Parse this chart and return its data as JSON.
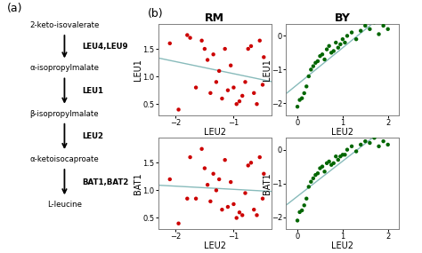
{
  "panel_a": {
    "steps": [
      "2-keto-isovalerate",
      "α-isopropylmalate",
      "β-isopropylmalate",
      "α-ketoisocaproate",
      "L-leucine"
    ],
    "enzymes": [
      "LEU4,LEU9",
      "LEU1",
      "LEU2",
      "BAT1,BAT2"
    ]
  },
  "panel_b": {
    "rm_leu1_leu2_x": [
      -2.1,
      -1.95,
      -1.8,
      -1.75,
      -1.65,
      -1.55,
      -1.5,
      -1.45,
      -1.4,
      -1.35,
      -1.3,
      -1.25,
      -1.2,
      -1.15,
      -1.1,
      -1.05,
      -1.0,
      -0.95,
      -0.9,
      -0.85,
      -0.8,
      -0.75,
      -0.7,
      -0.65,
      -0.6,
      -0.55,
      -0.5,
      -0.48
    ],
    "rm_leu1_leu2_y": [
      1.6,
      0.4,
      1.75,
      1.7,
      0.8,
      1.65,
      1.5,
      1.3,
      0.7,
      1.4,
      0.9,
      1.1,
      0.6,
      1.5,
      0.75,
      1.2,
      0.8,
      0.5,
      0.55,
      0.65,
      0.9,
      1.5,
      1.55,
      0.7,
      0.5,
      1.65,
      0.85,
      1.35
    ],
    "by_leu1_leu2_x": [
      0.0,
      0.05,
      0.1,
      0.15,
      0.2,
      0.25,
      0.3,
      0.35,
      0.4,
      0.45,
      0.5,
      0.55,
      0.6,
      0.65,
      0.7,
      0.75,
      0.8,
      0.85,
      0.9,
      0.95,
      1.0,
      1.05,
      1.1,
      1.2,
      1.3,
      1.4,
      1.5,
      1.6,
      1.7,
      1.8,
      1.9,
      2.0
    ],
    "by_leu1_leu2_y": [
      -2.1,
      -1.9,
      -1.85,
      -1.7,
      -1.5,
      -1.2,
      -1.0,
      -0.9,
      -0.8,
      -0.75,
      -0.6,
      -0.55,
      -0.7,
      -0.4,
      -0.3,
      -0.5,
      -0.45,
      -0.2,
      -0.35,
      -0.25,
      -0.1,
      -0.2,
      0.0,
      0.1,
      -0.1,
      0.15,
      0.3,
      0.2,
      0.4,
      0.05,
      0.3,
      0.2
    ],
    "rm_bat1_leu2_x": [
      -2.1,
      -1.95,
      -1.8,
      -1.75,
      -1.65,
      -1.55,
      -1.5,
      -1.45,
      -1.4,
      -1.35,
      -1.3,
      -1.25,
      -1.2,
      -1.15,
      -1.1,
      -1.05,
      -1.0,
      -0.95,
      -0.9,
      -0.85,
      -0.8,
      -0.75,
      -0.7,
      -0.65,
      -0.6,
      -0.55,
      -0.5,
      -0.48
    ],
    "rm_bat1_leu2_y": [
      1.2,
      0.4,
      0.85,
      1.6,
      0.85,
      1.75,
      1.4,
      1.1,
      0.8,
      1.3,
      1.0,
      1.2,
      0.65,
      1.55,
      0.7,
      1.15,
      0.75,
      0.5,
      0.6,
      0.55,
      0.95,
      1.45,
      1.5,
      0.65,
      0.55,
      1.6,
      0.85,
      1.3
    ],
    "by_bat1_leu2_x": [
      0.0,
      0.05,
      0.1,
      0.15,
      0.2,
      0.25,
      0.3,
      0.35,
      0.4,
      0.45,
      0.5,
      0.55,
      0.6,
      0.65,
      0.7,
      0.75,
      0.8,
      0.85,
      0.9,
      0.95,
      1.0,
      1.05,
      1.1,
      1.2,
      1.3,
      1.4,
      1.5,
      1.6,
      1.7,
      1.8,
      1.9,
      2.0
    ],
    "by_bat1_leu2_y": [
      -2.1,
      -1.85,
      -1.8,
      -1.65,
      -1.45,
      -1.1,
      -0.95,
      -0.85,
      -0.75,
      -0.7,
      -0.55,
      -0.5,
      -0.65,
      -0.4,
      -0.35,
      -0.45,
      -0.4,
      -0.2,
      -0.3,
      -0.2,
      -0.15,
      -0.15,
      0.0,
      0.1,
      -0.05,
      0.15,
      0.25,
      0.2,
      0.35,
      0.1,
      0.25,
      0.15
    ],
    "rm_color": "#cc0000",
    "by_color": "#006600",
    "line_color": "#88bbbb",
    "point_size": 10,
    "rm_xlim": [
      -2.3,
      -0.35
    ],
    "rm_ylim_leu1": [
      0.3,
      1.95
    ],
    "by_xlim": [
      -0.25,
      2.25
    ],
    "by_ylim_leu1": [
      -2.35,
      0.35
    ],
    "rm_ylim_bat1": [
      0.3,
      1.95
    ],
    "by_ylim_bat1": [
      -2.35,
      0.35
    ],
    "rm_xticks": [
      -2.0,
      -1.0
    ],
    "by_xticks": [
      0.0,
      1.0,
      2.0
    ],
    "rm_yticks_leu1": [
      0.5,
      1.0,
      1.5
    ],
    "by_yticks_leu1": [
      -2.0,
      -1.0,
      0.0
    ],
    "rm_yticks_bat1": [
      0.5,
      1.0,
      1.5
    ],
    "by_yticks_bat1": [
      -2.0,
      -1.0,
      0.0
    ],
    "tick_fontsize": 6,
    "label_fontsize": 7,
    "title_fontsize": 9
  }
}
